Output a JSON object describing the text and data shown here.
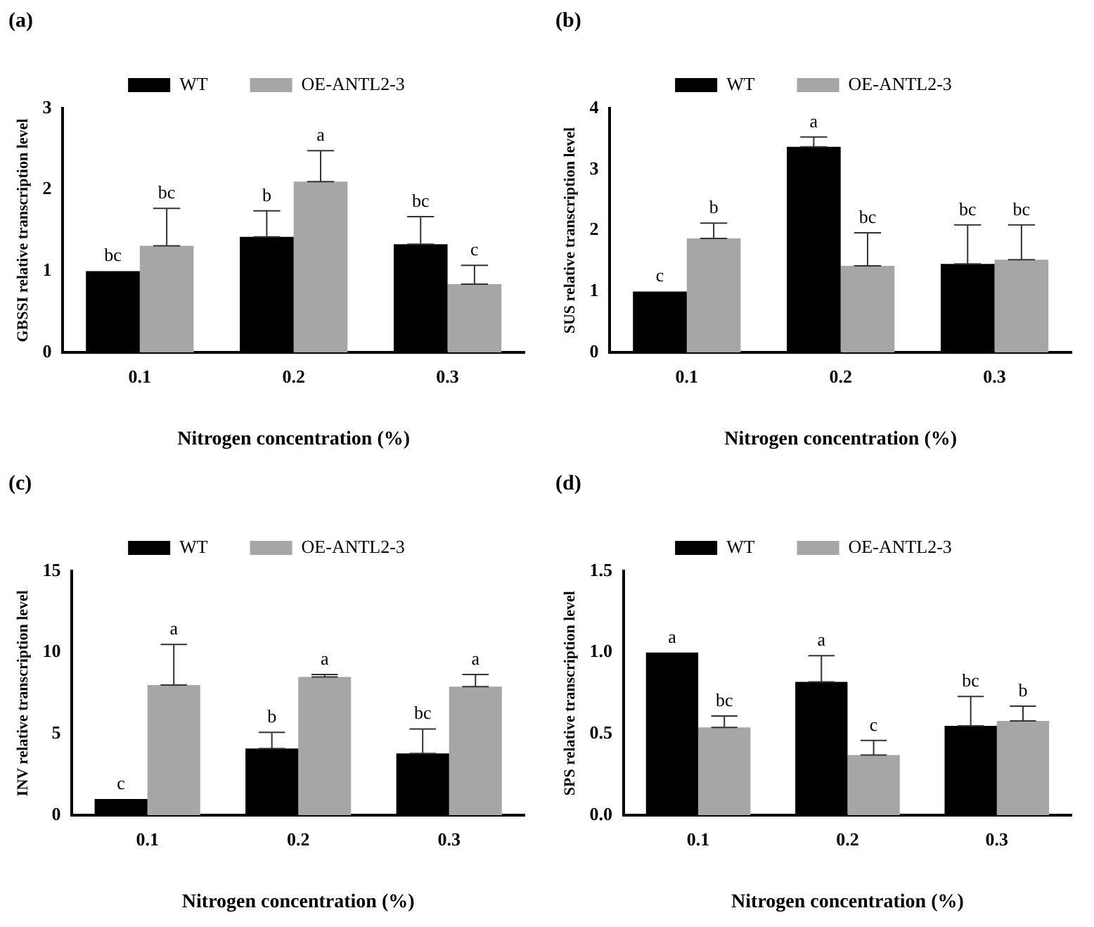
{
  "chart_data": [
    {
      "type": "bar",
      "title": "(a)",
      "xlabel": "Nitrogen concentration (%)",
      "ylabel": "GBSSI relative transcription level",
      "categories": [
        "0.1",
        "0.2",
        "0.3"
      ],
      "series": [
        {
          "name": "WT",
          "color": "#000000",
          "values": [
            1.0,
            1.42,
            1.33
          ],
          "errors": [
            null,
            [
              1.42,
              1.74
            ],
            [
              1.33,
              1.67
            ]
          ],
          "value_labels": [
            "bc",
            "b",
            "bc"
          ]
        },
        {
          "name": "OE-ANTL2-3",
          "color": "#a6a6a6",
          "values": [
            1.31,
            2.1,
            0.84
          ],
          "errors": [
            [
              1.31,
              1.77
            ],
            [
              2.1,
              2.48
            ],
            [
              0.84,
              1.07
            ]
          ],
          "value_labels": [
            "bc",
            "a",
            "c"
          ]
        }
      ],
      "ylim": [
        0,
        3
      ],
      "yticks": [
        0,
        1,
        2,
        3
      ],
      "grid": false,
      "legend": "top"
    },
    {
      "type": "bar",
      "title": "(b)",
      "xlabel": "Nitrogen concentration (%)",
      "ylabel": "SUS relative transcription level",
      "categories": [
        "0.1",
        "0.2",
        "0.3"
      ],
      "series": [
        {
          "name": "WT",
          "color": "#000000",
          "values": [
            1.0,
            3.37,
            1.45
          ],
          "errors": [
            null,
            [
              3.37,
              3.53
            ],
            [
              1.45,
              2.09
            ]
          ],
          "value_labels": [
            "c",
            "a",
            "bc"
          ]
        },
        {
          "name": "OE-ANTL2-3",
          "color": "#a6a6a6",
          "values": [
            1.87,
            1.42,
            1.52
          ],
          "errors": [
            [
              1.87,
              2.12
            ],
            [
              1.42,
              1.96
            ],
            [
              1.52,
              2.09
            ]
          ],
          "value_labels": [
            "b",
            "bc",
            "bc"
          ]
        }
      ],
      "ylim": [
        0,
        4
      ],
      "yticks": [
        0,
        1,
        2,
        3,
        4
      ],
      "grid": false,
      "legend": "top"
    },
    {
      "type": "bar",
      "title": "(c)",
      "xlabel": "Nitrogen concentration (%)",
      "ylabel": "INV relative transcription level",
      "categories": [
        "0.1",
        "0.2",
        "0.3"
      ],
      "series": [
        {
          "name": "WT",
          "color": "#000000",
          "values": [
            1.0,
            4.1,
            3.8
          ],
          "errors": [
            null,
            [
              4.1,
              5.1
            ],
            [
              3.8,
              5.3
            ]
          ],
          "value_labels": [
            "c",
            "b",
            "bc"
          ]
        },
        {
          "name": "OE-ANTL2-3",
          "color": "#a6a6a6",
          "values": [
            8.0,
            8.5,
            7.9
          ],
          "errors": [
            [
              8.0,
              10.5
            ],
            [
              8.5,
              8.65
            ],
            [
              7.9,
              8.65
            ]
          ],
          "value_labels": [
            "a",
            "a",
            "a"
          ]
        }
      ],
      "ylim": [
        0,
        15
      ],
      "yticks": [
        0,
        5,
        10,
        15
      ],
      "grid": false,
      "legend": "top"
    },
    {
      "type": "bar",
      "title": "(d)",
      "xlabel": "Nitrogen concentration (%)",
      "ylabel": "SPS relative transcription level",
      "categories": [
        "0.1",
        "0.2",
        "0.3"
      ],
      "series": [
        {
          "name": "WT",
          "color": "#000000",
          "values": [
            1.0,
            0.82,
            0.55
          ],
          "errors": [
            null,
            [
              0.82,
              0.98
            ],
            [
              0.55,
              0.73
            ]
          ],
          "value_labels": [
            "a",
            "a",
            "bc"
          ]
        },
        {
          "name": "OE-ANTL2-3",
          "color": "#a6a6a6",
          "values": [
            0.54,
            0.37,
            0.58
          ],
          "errors": [
            [
              0.54,
              0.61
            ],
            [
              0.37,
              0.46
            ],
            [
              0.58,
              0.67
            ]
          ],
          "value_labels": [
            "bc",
            "c",
            "b"
          ]
        }
      ],
      "ylim": [
        0,
        1.5
      ],
      "yticks": [
        {
          "value": 0,
          "label": "0.0"
        },
        {
          "value": 0.5,
          "label": "0.5"
        },
        {
          "value": 1,
          "label": "1.0"
        },
        {
          "value": 1.5,
          "label": "1.5"
        }
      ],
      "grid": false,
      "legend": "top"
    }
  ]
}
